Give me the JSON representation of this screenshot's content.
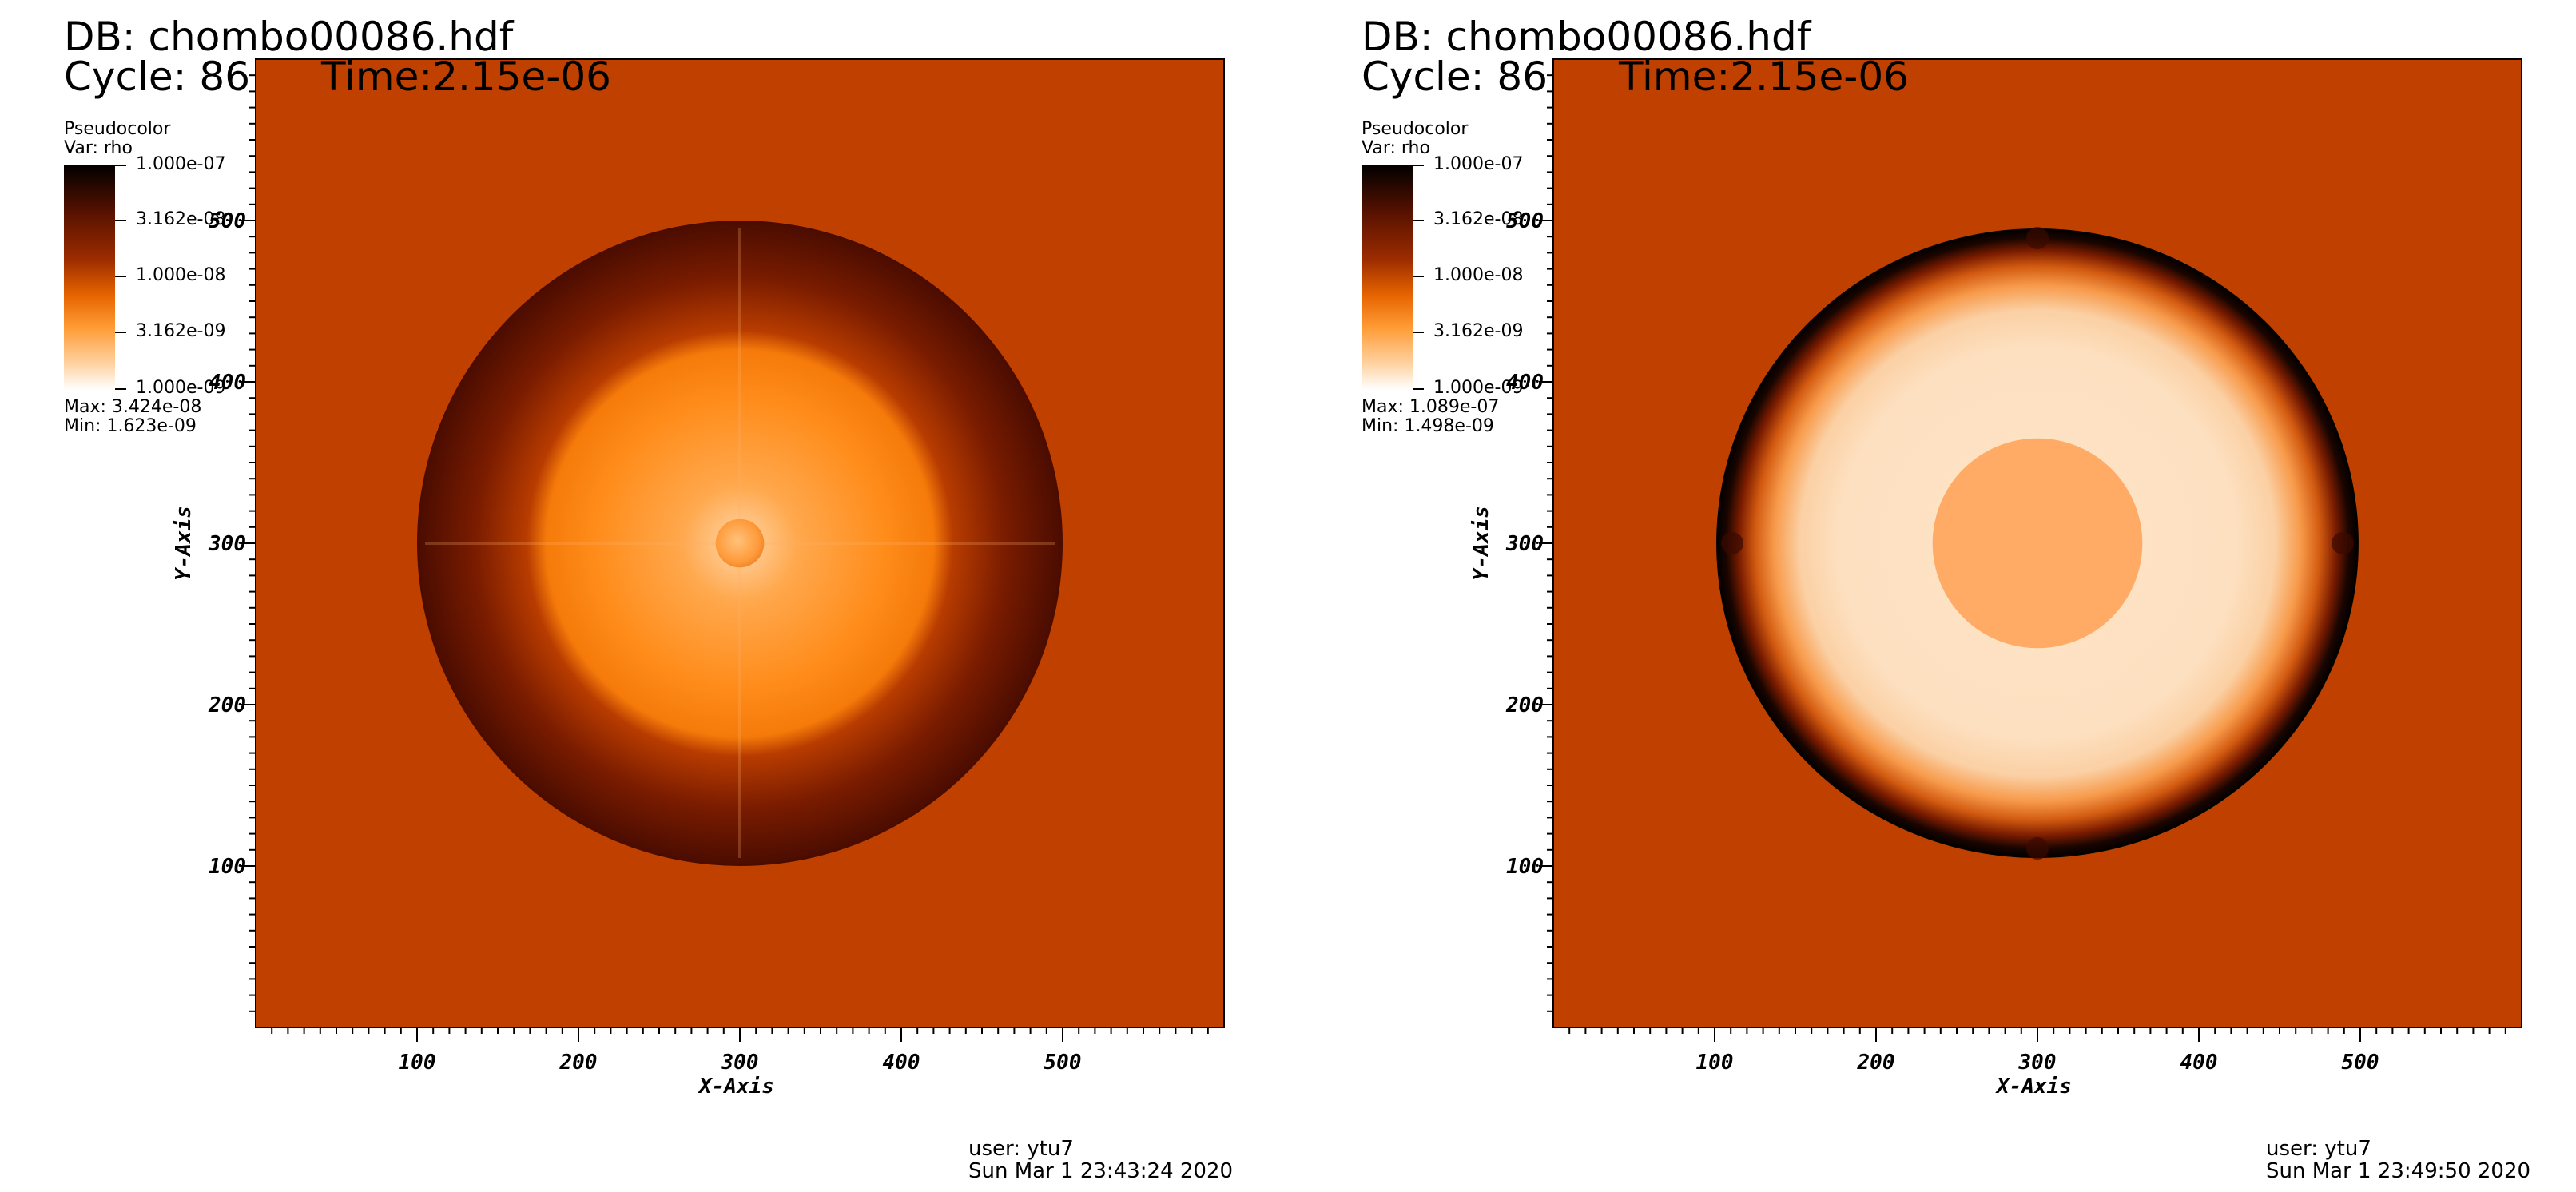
{
  "plot_colors": {
    "background_field": "#c04000",
    "frame": "#000000",
    "colormap": [
      "#000000",
      "#5a1200",
      "#9c2c00",
      "#e66400",
      "#ff9a33",
      "#ffd19e",
      "#ffffff"
    ]
  },
  "panels": [
    {
      "db_title": "DB: chombo00086.hdf",
      "cycle_text": "Cycle: 86",
      "time_text": "Time:2.15e-06",
      "legend": {
        "title": "Pseudocolor",
        "var": "Var: rho",
        "ticks": [
          "1.000e-07",
          "3.162e-08",
          "1.000e-08",
          "3.162e-09",
          "1.000e-09"
        ],
        "max_text": "Max:  3.424e-08",
        "min_text": "Min:  1.623e-09"
      },
      "user_text": "user: ytu7",
      "date_text": "Sun Mar  1 23:43:24 2020"
    },
    {
      "db_title": "DB: chombo00086.hdf",
      "cycle_text": "Cycle: 86",
      "time_text": "Time:2.15e-06",
      "legend": {
        "title": "Pseudocolor",
        "var": "Var: rho",
        "ticks": [
          "1.000e-07",
          "3.162e-08",
          "1.000e-08",
          "3.162e-09",
          "1.000e-09"
        ],
        "max_text": "Max:  1.089e-07",
        "min_text": "Min:  1.498e-09"
      },
      "user_text": "user: ytu7",
      "date_text": "Sun Mar  1 23:49:50 2020"
    }
  ],
  "chart_data": [
    {
      "type": "heatmap",
      "title": "DB: chombo00086.hdf",
      "xlabel": "X-Axis",
      "ylabel": "Y-Axis",
      "xlim": [
        0,
        600
      ],
      "ylim": [
        0,
        600
      ],
      "x_ticks": [
        "100",
        "200",
        "300",
        "400",
        "500"
      ],
      "y_ticks": [
        "100",
        "200",
        "300",
        "400",
        "500"
      ],
      "variable": "rho",
      "colorbar_scale": "log",
      "colorbar_range": [
        1e-09,
        1e-07
      ],
      "data_max": 3.424e-08,
      "data_min": 1.623e-09,
      "features": [
        {
          "shape": "circle",
          "center": [
            300,
            300
          ],
          "radius": 200,
          "description": "dark shell"
        },
        {
          "shape": "circle",
          "center": [
            300,
            300
          ],
          "radius": 120,
          "description": "lighter orange interior"
        },
        {
          "shape": "circle",
          "center": [
            300,
            300
          ],
          "radius": 15,
          "description": "small central blob"
        }
      ]
    },
    {
      "type": "heatmap",
      "title": "DB: chombo00086.hdf",
      "xlabel": "X-Axis",
      "ylabel": "Y-Axis",
      "xlim": [
        0,
        600
      ],
      "ylim": [
        0,
        600
      ],
      "x_ticks": [
        "100",
        "200",
        "300",
        "400",
        "500"
      ],
      "y_ticks": [
        "100",
        "200",
        "300",
        "400",
        "500"
      ],
      "variable": "rho",
      "colorbar_scale": "log",
      "colorbar_range": [
        1e-09,
        1e-07
      ],
      "data_max": 1.089e-07,
      "data_min": 1.498e-09,
      "features": [
        {
          "shape": "circle",
          "center": [
            300,
            300
          ],
          "radius": 197,
          "description": "thin black shock shell"
        },
        {
          "shape": "circle",
          "center": [
            300,
            300
          ],
          "radius": 175,
          "description": "pale cream interior"
        },
        {
          "shape": "circle",
          "center": [
            300,
            300
          ],
          "radius": 65,
          "description": "central orange disk"
        }
      ]
    }
  ]
}
